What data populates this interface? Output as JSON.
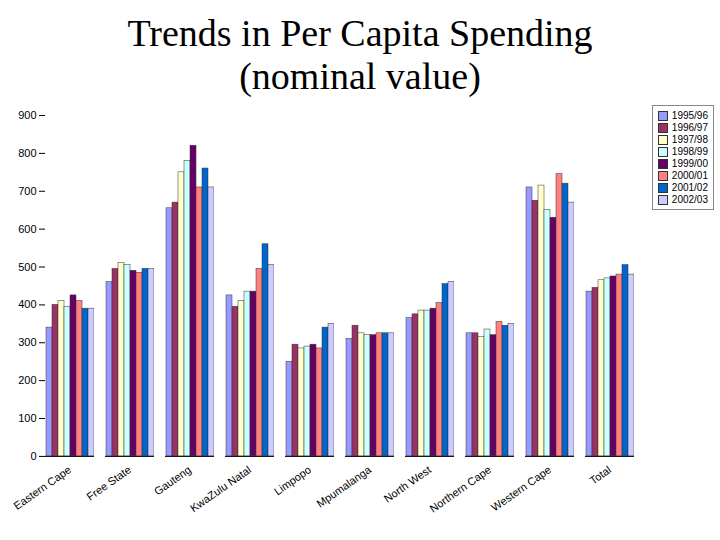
{
  "chart_data": {
    "type": "bar",
    "title": "Trends in Per Capita Spending (nominal value)",
    "categories": [
      "Eastern Cape",
      "Free State",
      "Gauteng",
      "KwaZulu Natal",
      "Limpopo",
      "Mpumalanga",
      "North West",
      "Northern Cape",
      "Western Cape",
      "Total"
    ],
    "series": [
      {
        "name": "1995/96",
        "color": "#9999ff",
        "values": [
          340,
          460,
          655,
          425,
          250,
          310,
          365,
          325,
          710,
          435
        ]
      },
      {
        "name": "1996/97",
        "color": "#993366",
        "values": [
          400,
          495,
          670,
          395,
          295,
          345,
          375,
          325,
          675,
          445
        ]
      },
      {
        "name": "1997/98",
        "color": "#ffffcc",
        "values": [
          410,
          510,
          750,
          410,
          285,
          325,
          385,
          315,
          715,
          465
        ]
      },
      {
        "name": "1998/99",
        "color": "#ccffff",
        "values": [
          395,
          505,
          780,
          435,
          290,
          320,
          385,
          335,
          650,
          470
        ]
      },
      {
        "name": "1999/00",
        "color": "#660066",
        "values": [
          425,
          490,
          820,
          435,
          295,
          320,
          390,
          320,
          630,
          475
        ]
      },
      {
        "name": "2000/01",
        "color": "#ff8080",
        "values": [
          410,
          485,
          710,
          495,
          285,
          325,
          405,
          355,
          745,
          480
        ]
      },
      {
        "name": "2001/02",
        "color": "#0066cc",
        "values": [
          390,
          495,
          760,
          560,
          340,
          325,
          455,
          345,
          720,
          505
        ]
      },
      {
        "name": "2002/03",
        "color": "#ccccff",
        "values": [
          390,
          495,
          710,
          505,
          350,
          325,
          460,
          350,
          670,
          480
        ]
      }
    ],
    "ylim": [
      0,
      900
    ],
    "yticks": [
      0,
      100,
      200,
      300,
      400,
      500,
      600,
      700,
      800,
      900
    ],
    "grid": false,
    "legend": "top-right"
  }
}
